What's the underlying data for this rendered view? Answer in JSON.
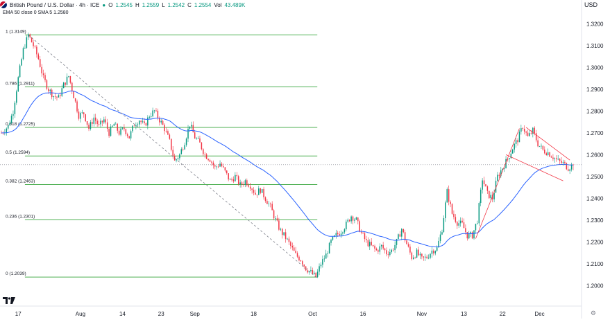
{
  "header": {
    "symbol": "British Pound / U.S. Dollar · 4h · ICE",
    "open_label": "O",
    "open": "1.2545",
    "high_label": "H",
    "high": "1.2559",
    "low_label": "L",
    "low": "1.2542",
    "close_label": "C",
    "close": "1.2554",
    "vol_label": "Vol",
    "vol": "43.489K",
    "indicators": "EMA 50 close 0  SMA 5  1.2580",
    "currency": "USD",
    "logo_text": "17"
  },
  "colors": {
    "up": "#089981",
    "down": "#f23645",
    "ema": "#2962ff",
    "fib": "#4caf50",
    "trend": "#f23645",
    "diag": "#787b86",
    "price_line": "#787b86"
  },
  "chart_data": {
    "type": "candlestick",
    "ylim": [
      1.196,
      1.322
    ],
    "y_ticks": [
      "1.3200",
      "1.3100",
      "1.3000",
      "1.2900",
      "1.2800",
      "1.2700",
      "1.2600",
      "1.2500",
      "1.2400",
      "1.2300",
      "1.2200",
      "1.2100",
      "1.2000"
    ],
    "x_ticks": [
      {
        "label": "17",
        "i": 10
      },
      {
        "label": "Aug",
        "i": 47
      },
      {
        "label": "14",
        "i": 72
      },
      {
        "label": "23",
        "i": 95
      },
      {
        "label": "Sep",
        "i": 115
      },
      {
        "label": "18",
        "i": 150
      },
      {
        "label": "Oct",
        "i": 185
      },
      {
        "label": "16",
        "i": 215
      },
      {
        "label": "Nov",
        "i": 250
      },
      {
        "label": "13",
        "i": 275
      },
      {
        "label": "22",
        "i": 298
      },
      {
        "label": "Dec",
        "i": 320
      }
    ],
    "fib_levels": [
      {
        "label": "1 (1.3149)",
        "value": 1.3149
      },
      {
        "label": "0.786 (1.2911)",
        "value": 1.2911
      },
      {
        "label": "0.618 (1.2725)",
        "value": 1.2725
      },
      {
        "label": "0.5 (1.2594)",
        "value": 1.2594
      },
      {
        "label": "0.382 (1.2463)",
        "value": 1.2463
      },
      {
        "label": "0.236 (1.2301)",
        "value": 1.2301
      },
      {
        "label": "0 (1.2039)",
        "value": 1.2039
      }
    ],
    "keypoints": [
      [
        0,
        1.27
      ],
      [
        4,
        1.273
      ],
      [
        7,
        1.28
      ],
      [
        10,
        1.295
      ],
      [
        13,
        1.308
      ],
      [
        16,
        1.3149
      ],
      [
        19,
        1.31
      ],
      [
        22,
        1.304
      ],
      [
        25,
        1.295
      ],
      [
        28,
        1.29
      ],
      [
        31,
        1.287
      ],
      [
        34,
        1.286
      ],
      [
        37,
        1.292
      ],
      [
        40,
        1.296
      ],
      [
        43,
        1.287
      ],
      [
        46,
        1.278
      ],
      [
        49,
        1.279
      ],
      [
        52,
        1.272
      ],
      [
        55,
        1.277
      ],
      [
        58,
        1.273
      ],
      [
        61,
        1.276
      ],
      [
        64,
        1.27
      ],
      [
        67,
        1.274
      ],
      [
        70,
        1.27
      ],
      [
        73,
        1.272
      ],
      [
        76,
        1.268
      ],
      [
        79,
        1.274
      ],
      [
        82,
        1.276
      ],
      [
        85,
        1.273
      ],
      [
        88,
        1.278
      ],
      [
        91,
        1.28
      ],
      [
        94,
        1.276
      ],
      [
        97,
        1.272
      ],
      [
        100,
        1.266
      ],
      [
        103,
        1.257
      ],
      [
        106,
        1.26
      ],
      [
        109,
        1.266
      ],
      [
        112,
        1.274
      ],
      [
        115,
        1.268
      ],
      [
        118,
        1.265
      ],
      [
        121,
        1.26
      ],
      [
        124,
        1.258
      ],
      [
        127,
        1.254
      ],
      [
        130,
        1.256
      ],
      [
        133,
        1.252
      ],
      [
        136,
        1.248
      ],
      [
        139,
        1.25
      ],
      [
        142,
        1.246
      ],
      [
        145,
        1.248
      ],
      [
        148,
        1.246
      ],
      [
        151,
        1.242
      ],
      [
        154,
        1.244
      ],
      [
        157,
        1.24
      ],
      [
        160,
        1.236
      ],
      [
        163,
        1.23
      ],
      [
        166,
        1.225
      ],
      [
        169,
        1.222
      ],
      [
        172,
        1.218
      ],
      [
        175,
        1.214
      ],
      [
        178,
        1.212
      ],
      [
        181,
        1.208
      ],
      [
        184,
        1.206
      ],
      [
        187,
        1.2039
      ],
      [
        190,
        1.21
      ],
      [
        193,
        1.214
      ],
      [
        196,
        1.22
      ],
      [
        199,
        1.223
      ],
      [
        202,
        1.225
      ],
      [
        205,
        1.228
      ],
      [
        208,
        1.232
      ],
      [
        211,
        1.23
      ],
      [
        214,
        1.224
      ],
      [
        217,
        1.22
      ],
      [
        220,
        1.218
      ],
      [
        223,
        1.216
      ],
      [
        226,
        1.218
      ],
      [
        229,
        1.215
      ],
      [
        232,
        1.216
      ],
      [
        235,
        1.22
      ],
      [
        238,
        1.226
      ],
      [
        241,
        1.219
      ],
      [
        244,
        1.213
      ],
      [
        247,
        1.215
      ],
      [
        250,
        1.212
      ],
      [
        253,
        1.213
      ],
      [
        256,
        1.216
      ],
      [
        259,
        1.217
      ],
      [
        262,
        1.226
      ],
      [
        265,
        1.243
      ],
      [
        268,
        1.233
      ],
      [
        271,
        1.229
      ],
      [
        274,
        1.228
      ],
      [
        277,
        1.223
      ],
      [
        280,
        1.223
      ],
      [
        283,
        1.23
      ],
      [
        286,
        1.249
      ],
      [
        289,
        1.242
      ],
      [
        292,
        1.24
      ],
      [
        295,
        1.25
      ],
      [
        298,
        1.254
      ],
      [
        301,
        1.258
      ],
      [
        304,
        1.263
      ],
      [
        307,
        1.267
      ],
      [
        310,
        1.273
      ],
      [
        313,
        1.268
      ],
      [
        316,
        1.271
      ],
      [
        319,
        1.265
      ],
      [
        322,
        1.262
      ],
      [
        325,
        1.261
      ],
      [
        328,
        1.259
      ],
      [
        331,
        1.257
      ],
      [
        334,
        1.256
      ],
      [
        337,
        1.254
      ],
      [
        340,
        1.2554
      ]
    ],
    "n": 340,
    "last_price": 1.2554
  }
}
